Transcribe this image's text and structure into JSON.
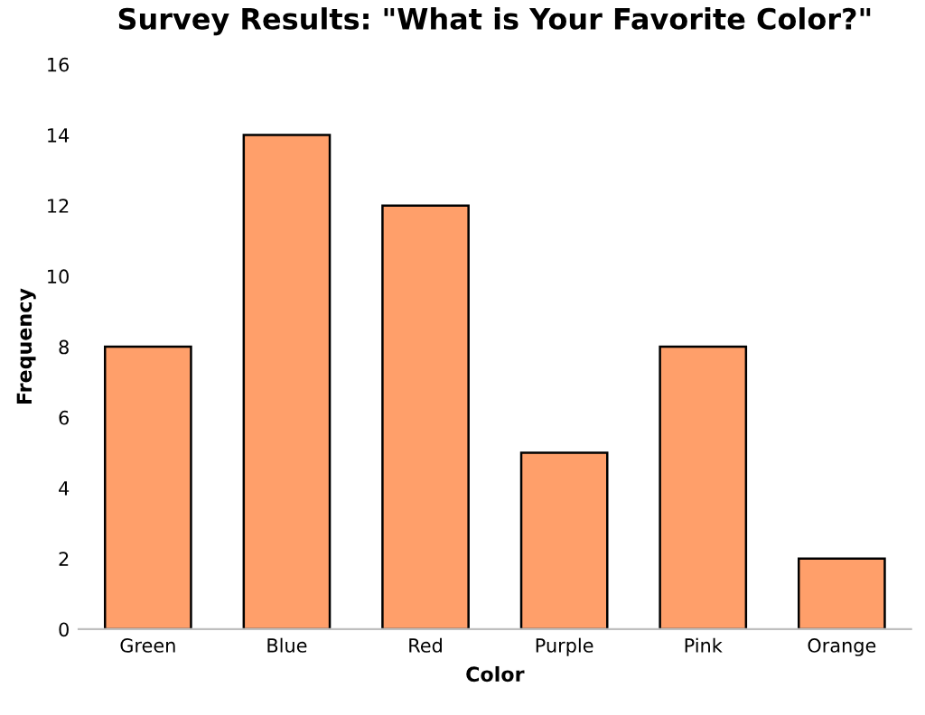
{
  "chart_data": {
    "type": "bar",
    "title": "Survey Results: \"What is Your Favorite Color?\"",
    "xlabel": "Color",
    "ylabel": "Frequency",
    "categories": [
      "Green",
      "Blue",
      "Red",
      "Purple",
      "Pink",
      "Orange"
    ],
    "values": [
      8,
      14,
      12,
      5,
      8,
      2
    ],
    "color": "#ff9f6a",
    "ylim": [
      0,
      16
    ],
    "yticks": [
      0,
      2,
      4,
      6,
      8,
      10,
      12,
      14,
      16
    ],
    "grid": false,
    "legend": false
  }
}
